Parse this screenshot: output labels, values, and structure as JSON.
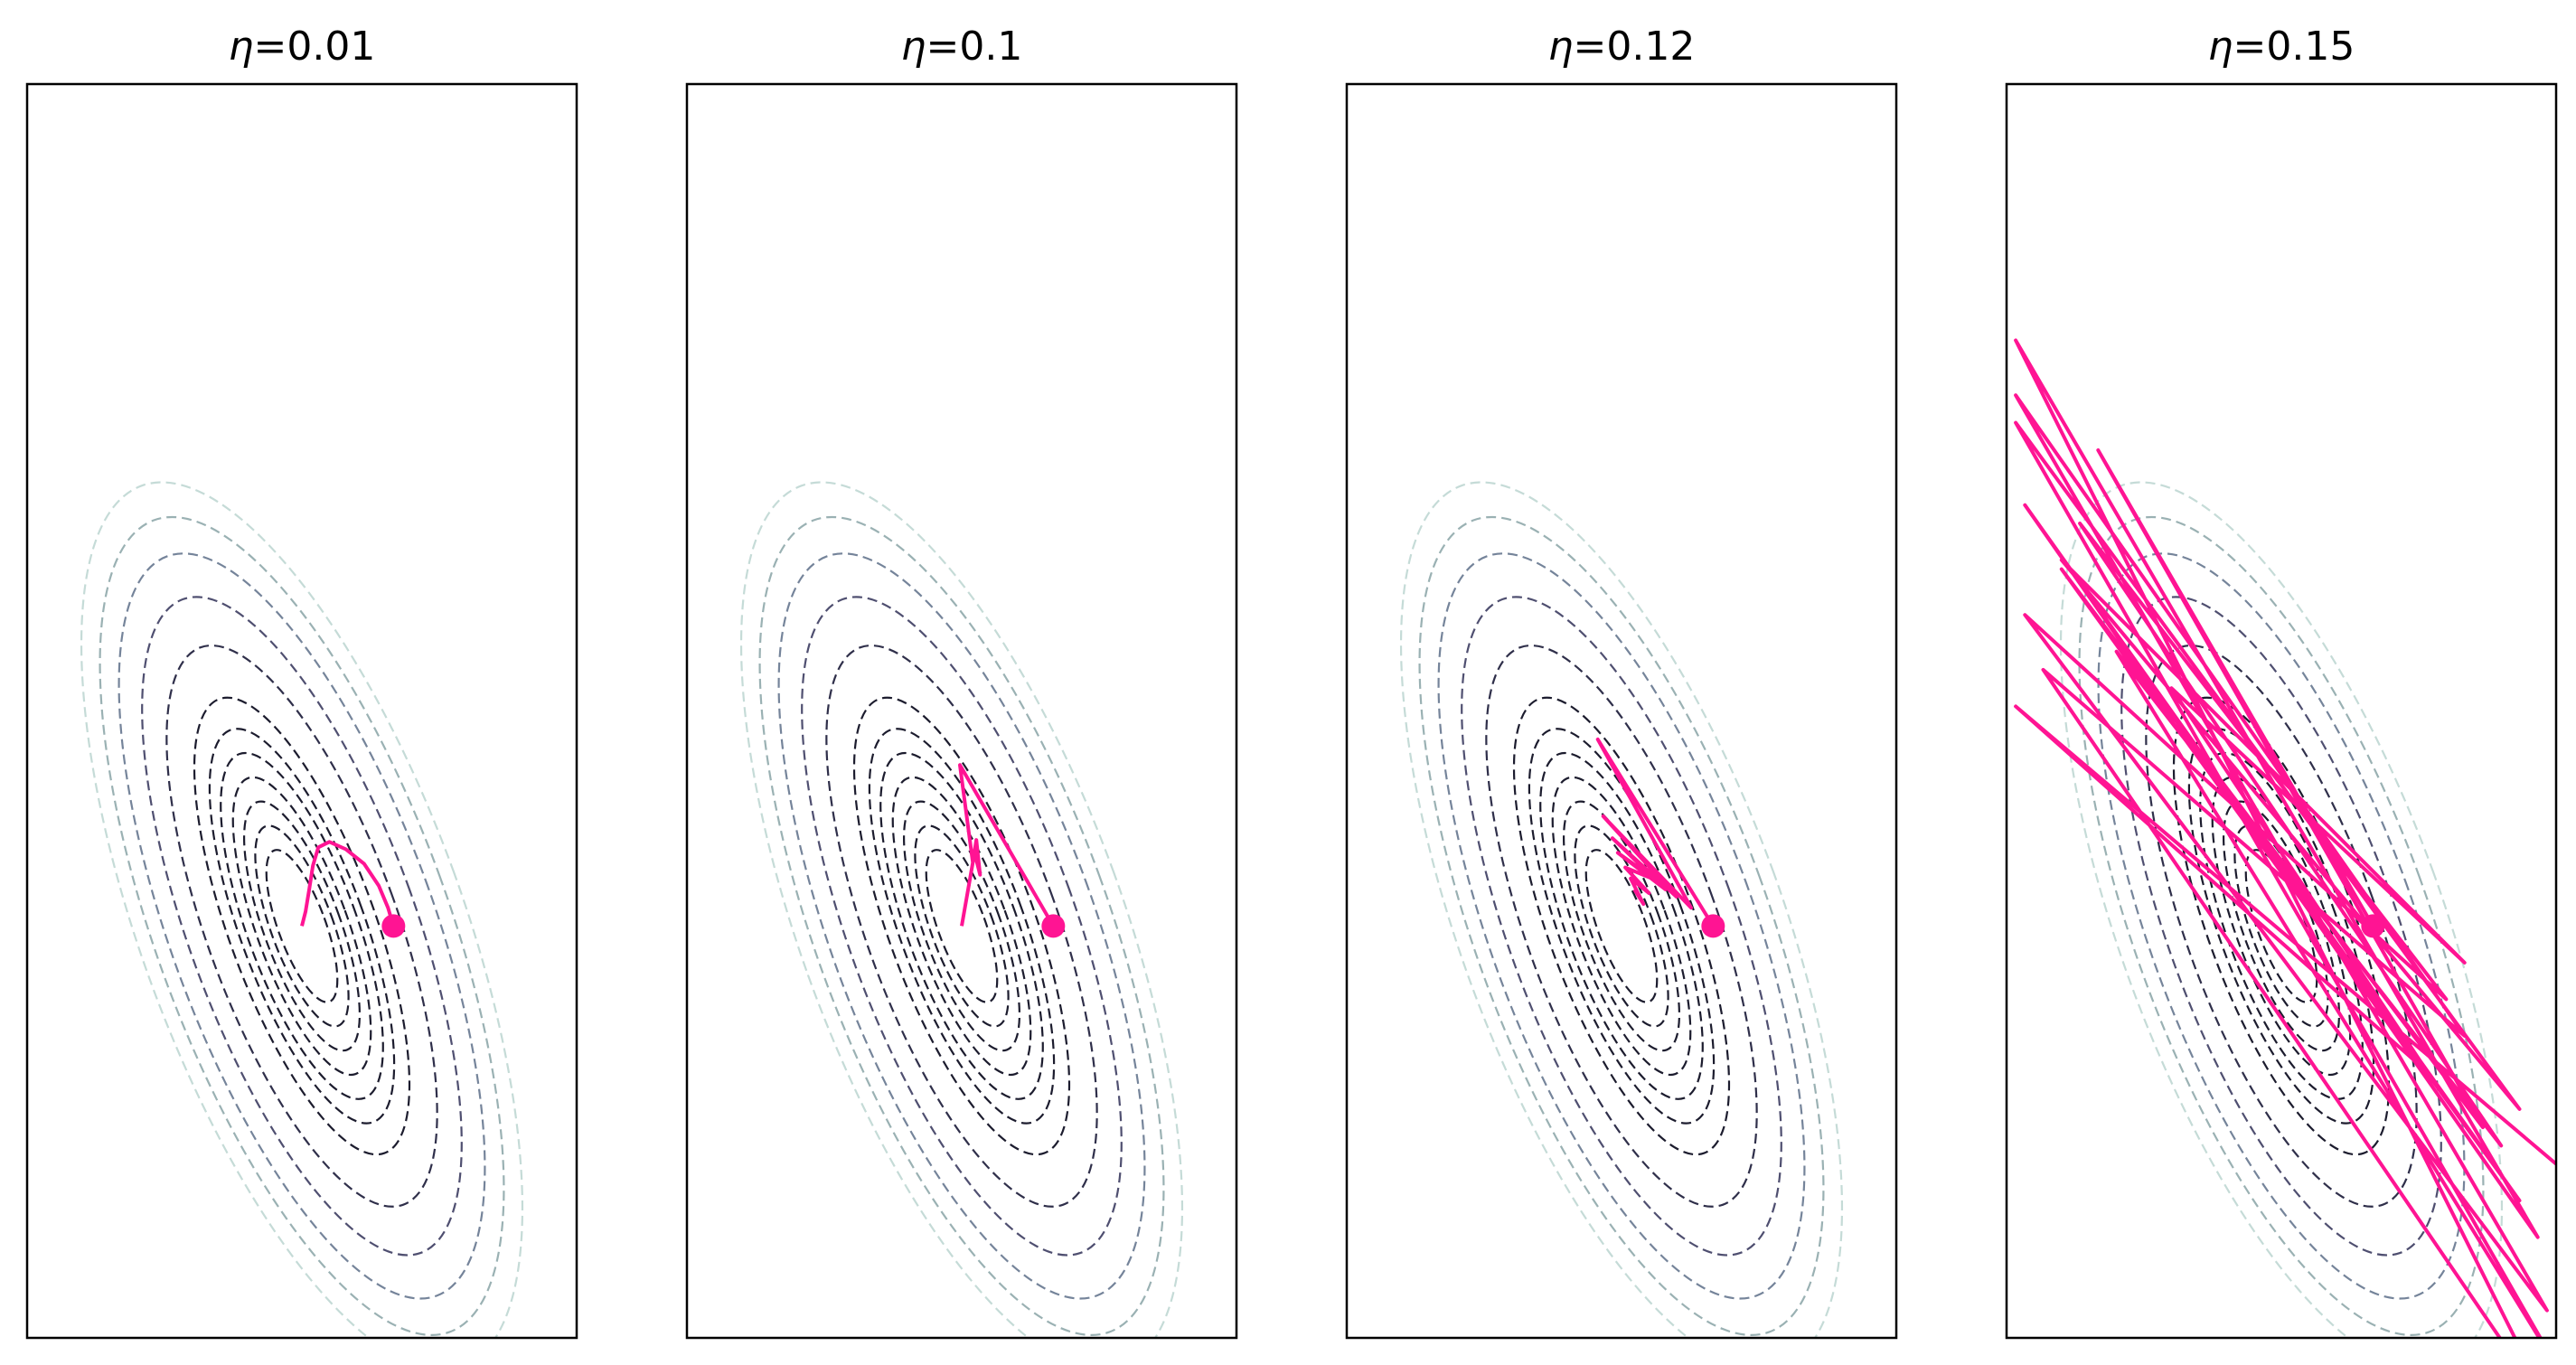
{
  "chart_data": [
    {
      "type": "line",
      "title": "η=0.01",
      "title_symbol": "η",
      "title_value": "=0.01",
      "learning_rate": 0.01,
      "axes": {
        "ticks": "none",
        "grid": false,
        "frame": "black"
      },
      "contours": {
        "style": "dashed",
        "levels": 12,
        "colormap": [
          "#1c1c2e",
          "#4a4a6a",
          "#7b8aa0",
          "#b8cfcf"
        ]
      },
      "series": [
        {
          "points": [
            [
              0.5,
              0.0
            ],
            [
              0.47,
              0.1
            ],
            [
              0.42,
              0.22
            ],
            [
              0.34,
              0.34
            ],
            [
              0.24,
              0.42
            ],
            [
              0.15,
              0.46
            ],
            [
              0.09,
              0.43
            ],
            [
              0.06,
              0.33
            ],
            [
              0.04,
              0.2
            ],
            [
              0.02,
              0.08
            ],
            [
              0.0,
              0.0
            ]
          ]
        }
      ],
      "start_point": [
        0.5,
        0.0
      ],
      "line_color": "#ff1493"
    },
    {
      "type": "line",
      "title": "η=0.1",
      "title_symbol": "η",
      "title_value": "=0.1",
      "learning_rate": 0.1,
      "axes": {
        "ticks": "none",
        "grid": false,
        "frame": "black"
      },
      "series": [
        {
          "points": [
            [
              0.5,
              0.0
            ],
            [
              -0.01,
              0.88
            ],
            [
              0.06,
              0.35
            ],
            [
              0.08,
              0.47
            ],
            [
              0.1,
              0.28
            ],
            [
              0.07,
              0.4
            ],
            [
              0.0,
              0.0
            ]
          ]
        }
      ],
      "start_point": [
        0.5,
        0.0
      ],
      "line_color": "#ff1493"
    },
    {
      "type": "line",
      "title": "η=0.12",
      "title_symbol": "η",
      "title_value": "=0.12",
      "learning_rate": 0.12,
      "axes": {
        "ticks": "none",
        "grid": false,
        "frame": "black"
      },
      "series": [
        {
          "points": [
            [
              0.5,
              0.0
            ],
            [
              -0.13,
              1.02
            ],
            [
              0.38,
              0.1
            ],
            [
              -0.1,
              0.6
            ],
            [
              0.3,
              0.16
            ],
            [
              -0.05,
              0.48
            ],
            [
              0.24,
              0.2
            ],
            [
              -0.02,
              0.4
            ],
            [
              0.19,
              0.25
            ],
            [
              0.02,
              0.32
            ],
            [
              0.15,
              0.18
            ],
            [
              0.05,
              0.26
            ],
            [
              0.12,
              0.12
            ],
            [
              0.07,
              0.2
            ]
          ]
        }
      ],
      "start_point": [
        0.5,
        0.0
      ],
      "line_color": "#ff1493"
    },
    {
      "type": "line",
      "title": "η=0.15",
      "title_symbol": "η",
      "title_value": "=0.15",
      "learning_rate": 0.15,
      "axes": {
        "ticks": "none",
        "grid": false,
        "frame": "black"
      },
      "series": [
        {
          "points": [
            [
              0.5,
              0.0
            ],
            [
              -1.0,
              2.6
            ],
            [
              1.1,
              -1.1
            ],
            [
              -1.2,
              1.95
            ],
            [
              1.3,
              -1.5
            ],
            [
              -1.4,
              2.3
            ],
            [
              1.4,
              -1.7
            ],
            [
              -1.45,
              3.2
            ],
            [
              1.5,
              -2.7
            ],
            [
              -1.3,
              1.4
            ],
            [
              1.0,
              -0.6
            ],
            [
              -1.45,
              2.9
            ],
            [
              1.45,
              -2.1
            ],
            [
              -1.4,
              1.7
            ],
            [
              0.9,
              -0.4
            ],
            [
              -1.1,
              2.2
            ],
            [
              1.2,
              -1.2
            ],
            [
              -0.9,
              1.5
            ],
            [
              1.5,
              -2.4
            ],
            [
              -1.45,
              2.75
            ],
            [
              1.3,
              -1.0
            ],
            [
              -1.2,
              2.0
            ],
            [
              1.0,
              -0.2
            ],
            [
              -0.6,
              1.3
            ],
            [
              0.8,
              -0.8
            ],
            [
              -1.45,
              1.2
            ],
            [
              1.5,
              -1.3
            ]
          ]
        }
      ],
      "start_point": [
        0.5,
        0.0
      ],
      "line_color": "#ff1493"
    }
  ]
}
